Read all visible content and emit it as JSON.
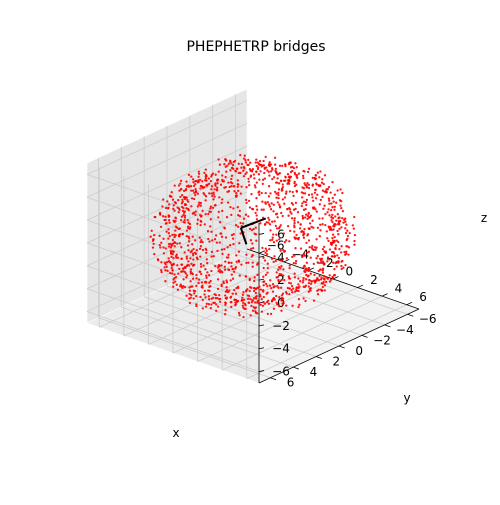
{
  "chart_data": {
    "type": "scatter",
    "projection": "3d",
    "title": "PHEPHETRP bridges",
    "xlabel": "x",
    "ylabel": "y",
    "zlabel": "z",
    "xlim": [
      -7,
      7
    ],
    "ylim": [
      -7,
      7
    ],
    "zlim": [
      -7,
      7
    ],
    "xticks": [
      -6,
      -4,
      -2,
      0,
      2,
      4,
      6
    ],
    "yticks": [
      -6,
      -4,
      -2,
      0,
      2,
      4,
      6
    ],
    "zticks": [
      -6,
      -4,
      -2,
      0,
      2,
      4,
      6
    ],
    "xtick_labels": [
      "−6",
      "−4",
      "−2",
      "0",
      "2",
      "4",
      "6"
    ],
    "ytick_labels": [
      "−6",
      "−4",
      "−2",
      "0",
      "2",
      "4",
      "6"
    ],
    "ztick_labels": [
      "−6",
      "−4",
      "−2",
      "0",
      "2",
      "4",
      "6"
    ],
    "grid": true,
    "point_color": "#ff0000",
    "line_color": "#000000",
    "shell_radius_range": [
      4.8,
      6.2
    ],
    "point_count": 1500,
    "line_segments": [
      [
        [
          -0.8,
          0.2,
          0.5
        ],
        [
          0.3,
          0.9,
          -0.2
        ]
      ],
      [
        [
          -0.8,
          0.2,
          0.5
        ],
        [
          0.2,
          -0.9,
          1.2
        ]
      ]
    ],
    "pane_color": "#f2f2f2",
    "grid_color": "#cccccc"
  }
}
